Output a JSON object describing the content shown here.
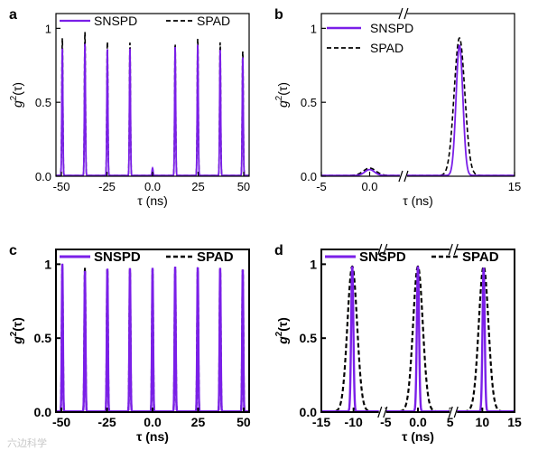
{
  "colors": {
    "snspd": "#7a1fe8",
    "spad": "#000000",
    "axis": "#000000"
  },
  "legend_labels": {
    "snspd": "SNSPD",
    "spad": "SPAD"
  },
  "watermark": "六边科学",
  "chart_data": [
    {
      "panel": "a",
      "type": "line",
      "xlabel": "τ (ns)",
      "ylabel": "g2(τ)",
      "xlim": [
        -53,
        53
      ],
      "ylim": [
        0,
        1.1
      ],
      "xticks": [
        -50,
        -25,
        0,
        25,
        50
      ],
      "yticks": [
        0.0,
        0.5,
        1.0
      ],
      "legend": "top, horizontal",
      "peak_width": 0.28,
      "series": [
        {
          "name": "SNSPD",
          "style": "solid",
          "baseline": 0.005,
          "peaks": [
            [
              -49.5,
              0.86
            ],
            [
              -37.1,
              0.89
            ],
            [
              -24.8,
              0.86
            ],
            [
              -12.4,
              0.86
            ],
            [
              0,
              0.05
            ],
            [
              12.4,
              0.87
            ],
            [
              24.8,
              0.89
            ],
            [
              37.1,
              0.85
            ],
            [
              49.5,
              0.8
            ]
          ]
        },
        {
          "name": "SPAD",
          "style": "dashed",
          "baseline": 0.005,
          "peaks": [
            [
              -49.5,
              0.93
            ],
            [
              -37.1,
              0.97
            ],
            [
              -24.8,
              0.91
            ],
            [
              -12.4,
              0.9
            ],
            [
              0,
              0.04
            ],
            [
              12.4,
              0.89
            ],
            [
              24.8,
              0.93
            ],
            [
              37.1,
              0.9
            ],
            [
              49.5,
              0.84
            ]
          ]
        }
      ]
    },
    {
      "panel": "b",
      "type": "line",
      "xlabel": "τ (ns)",
      "ylabel": "g2(τ)",
      "xlim": [
        -5,
        15
      ],
      "ylim": [
        0,
        1.1
      ],
      "xticks": [
        -5,
        0,
        15
      ],
      "yticks": [
        0.0,
        0.5,
        1.0
      ],
      "axis_break_x": 3.5,
      "legend": "top-left, vertical",
      "series": [
        {
          "name": "SNSPD",
          "style": "solid",
          "baseline": 0.005,
          "peaks": [
            [
              0,
              0.04,
              0.5
            ],
            [
              9.3,
              0.88,
              0.35
            ]
          ]
        },
        {
          "name": "SPAD",
          "style": "dashed",
          "baseline": 0.005,
          "peaks": [
            [
              0,
              0.05,
              0.65
            ],
            [
              9.3,
              0.93,
              0.55
            ]
          ]
        }
      ]
    },
    {
      "panel": "c",
      "type": "line",
      "xlabel": "τ (ns)",
      "ylabel": "g2(τ)",
      "xlim": [
        -53,
        53
      ],
      "ylim": [
        0,
        1.1
      ],
      "xticks": [
        -50,
        -25,
        0,
        25,
        50
      ],
      "yticks": [
        0.0,
        0.5,
        1.0
      ],
      "legend": "top, horizontal",
      "peak_width": 0.3,
      "series": [
        {
          "name": "SNSPD",
          "style": "solid",
          "baseline": 0.005,
          "peaks": [
            [
              -49.5,
              1.0
            ],
            [
              -37.1,
              0.95
            ],
            [
              -24.8,
              0.97
            ],
            [
              -12.4,
              0.97
            ],
            [
              0,
              0.97
            ],
            [
              12.4,
              0.98
            ],
            [
              24.8,
              0.98
            ],
            [
              37.1,
              0.97
            ],
            [
              49.5,
              0.96
            ]
          ]
        },
        {
          "name": "SPAD",
          "style": "dashed",
          "baseline": 0.005,
          "peaks": [
            [
              -49.5,
              0.97
            ],
            [
              -37.1,
              0.97
            ],
            [
              -24.8,
              0.97
            ],
            [
              -12.4,
              0.96
            ],
            [
              0,
              0.96
            ],
            [
              12.4,
              0.96
            ],
            [
              24.8,
              0.96
            ],
            [
              37.1,
              0.96
            ],
            [
              49.5,
              0.96
            ]
          ]
        }
      ]
    },
    {
      "panel": "d",
      "type": "line",
      "xlabel": "τ (ns)",
      "ylabel": "g2(τ)",
      "xlim": [
        -15,
        15
      ],
      "ylim": [
        0,
        1.1
      ],
      "xticks": [
        -15,
        -10,
        -5,
        0,
        5,
        10,
        15
      ],
      "yticks": [
        0.0,
        0.5,
        1.0
      ],
      "axis_breaks_x": [
        -5.5,
        5.5
      ],
      "legend": "top, horizontal",
      "series": [
        {
          "name": "SNSPD",
          "style": "solid",
          "baseline": 0.005,
          "peaks": [
            [
              -10.2,
              0.98,
              0.17
            ],
            [
              0,
              0.98,
              0.17
            ],
            [
              10.2,
              0.97,
              0.17
            ]
          ]
        },
        {
          "name": "SPAD",
          "style": "dashed",
          "baseline": 0.005,
          "peaks": [
            [
              -10.2,
              0.98,
              0.75
            ],
            [
              0,
              0.98,
              0.75
            ],
            [
              10.2,
              0.98,
              0.75
            ]
          ]
        }
      ]
    }
  ]
}
